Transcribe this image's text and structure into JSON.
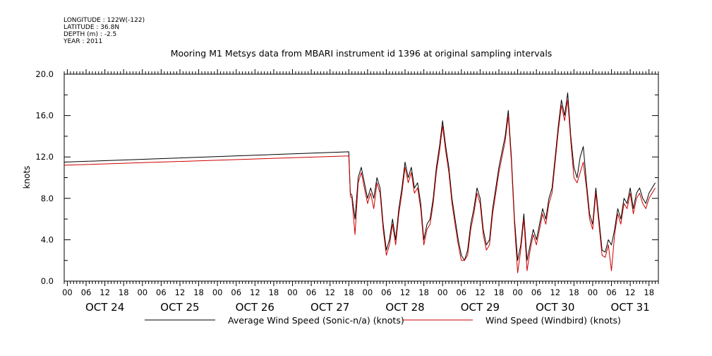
{
  "meta": {
    "longitude": "LONGITUDE : 122W(-122)",
    "latitude": "LATITUDE : 36.8N",
    "depth": "DEPTH (m) : -2.5",
    "year": "YEAR : 2011"
  },
  "chart_data": {
    "type": "line",
    "title": "Mooring M1 Metsys data from MBARI instrument id 1396 at original sampling intervals",
    "ylabel": "knots",
    "xlabel": "",
    "ylim": [
      0,
      20
    ],
    "xlim_hours": [
      -1,
      189
    ],
    "y_ticks": [
      "0.0",
      "4.0",
      "8.0",
      "12.0",
      "16.0",
      "20.0"
    ],
    "x_hour_ticks": [
      "00",
      "06",
      "12",
      "18",
      "00",
      "06",
      "12",
      "18",
      "00",
      "06",
      "12",
      "18",
      "00",
      "06",
      "12",
      "18",
      "00",
      "06",
      "12",
      "18",
      "00",
      "06",
      "12",
      "18",
      "00",
      "06",
      "12",
      "18",
      "00",
      "06",
      "12",
      "18"
    ],
    "x_day_labels": [
      "OCT 24",
      "OCT 25",
      "OCT 26",
      "OCT 27",
      "OCT 28",
      "OCT 29",
      "OCT 30",
      "OCT 31"
    ],
    "grid": false,
    "legend_position": "bottom",
    "series": [
      {
        "name": "Average Wind Speed (Sonic-n/a) (knots)",
        "color": "#000000",
        "x": [
          -1,
          90,
          90.5,
          91,
          92,
          93,
          94,
          95,
          96,
          97,
          98,
          99,
          100,
          101,
          102,
          103,
          104,
          105,
          106,
          107,
          108,
          109,
          110,
          111,
          112,
          113,
          114,
          115,
          116,
          117,
          118,
          119,
          120,
          121,
          122,
          123,
          124,
          125,
          126,
          127,
          128,
          129,
          130,
          131,
          132,
          133,
          134,
          135,
          136,
          137,
          138,
          139,
          140,
          141,
          142,
          143,
          144,
          145,
          146,
          147,
          148,
          149,
          150,
          151,
          152,
          153,
          154,
          155,
          156,
          157,
          158,
          159,
          160,
          161,
          162,
          163,
          164,
          165,
          166,
          167,
          168,
          169,
          170,
          171,
          172,
          173,
          174,
          175,
          176,
          177,
          178,
          179,
          180,
          181,
          182,
          183,
          184,
          185,
          186,
          187,
          188
        ],
        "y": [
          11.5,
          12.5,
          8.5,
          8.3,
          6.0,
          10.0,
          11.0,
          9.5,
          8.0,
          9.0,
          8.0,
          10.0,
          9.0,
          5.5,
          3.0,
          4.0,
          6.0,
          4.0,
          7.0,
          9.0,
          11.5,
          10.0,
          11.0,
          9.0,
          9.5,
          7.5,
          4.0,
          5.5,
          6.0,
          8.0,
          11.0,
          13.0,
          15.5,
          13.0,
          11.0,
          8.0,
          6.0,
          4.0,
          2.5,
          2.0,
          3.0,
          5.5,
          7.0,
          9.0,
          8.0,
          5.0,
          3.5,
          4.0,
          7.0,
          9.0,
          11.0,
          12.5,
          14.0,
          16.5,
          12.0,
          6.0,
          2.0,
          3.5,
          6.5,
          2.0,
          3.5,
          5.0,
          4.0,
          5.5,
          7.0,
          6.0,
          8.0,
          9.0,
          12.0,
          15.0,
          17.5,
          16.0,
          18.2,
          14.0,
          11.0,
          10.0,
          12.0,
          13.0,
          9.5,
          6.5,
          5.5,
          9.0,
          6.0,
          3.0,
          2.8,
          4.0,
          3.5,
          5.0,
          7.0,
          6.0,
          8.0,
          7.5,
          9.0,
          7.0,
          8.5,
          9.0,
          8.0,
          7.5,
          8.5,
          9.0,
          9.5
        ]
      },
      {
        "name": "Wind Speed (Windbird) (knots)",
        "color": "#cc0000",
        "x": [
          -1,
          90,
          90.5,
          91,
          92,
          93,
          94,
          95,
          96,
          97,
          98,
          99,
          100,
          101,
          102,
          103,
          104,
          105,
          106,
          107,
          108,
          109,
          110,
          111,
          112,
          113,
          114,
          115,
          116,
          117,
          118,
          119,
          120,
          121,
          122,
          123,
          124,
          125,
          126,
          127,
          128,
          129,
          130,
          131,
          132,
          133,
          134,
          135,
          136,
          137,
          138,
          139,
          140,
          141,
          142,
          143,
          144,
          145,
          146,
          147,
          148,
          149,
          150,
          151,
          152,
          153,
          154,
          155,
          156,
          157,
          158,
          159,
          160,
          161,
          162,
          163,
          164,
          165,
          166,
          167,
          168,
          169,
          170,
          171,
          172,
          173,
          174,
          175,
          176,
          177,
          178,
          179,
          180,
          181,
          182,
          183,
          184,
          185,
          186,
          187,
          188
        ],
        "y": [
          11.2,
          12.1,
          8.2,
          8.0,
          4.5,
          9.5,
          10.5,
          9.0,
          7.5,
          8.5,
          7.0,
          9.5,
          8.5,
          5.0,
          2.5,
          3.5,
          5.5,
          3.5,
          6.5,
          8.5,
          11.0,
          9.5,
          10.5,
          8.5,
          9.0,
          7.0,
          3.5,
          5.0,
          5.5,
          7.5,
          10.5,
          12.5,
          15.0,
          12.5,
          10.5,
          7.5,
          5.5,
          3.5,
          2.0,
          2.0,
          2.5,
          5.0,
          6.5,
          8.5,
          7.5,
          4.5,
          3.0,
          3.5,
          6.5,
          8.5,
          10.5,
          12.0,
          13.5,
          16.0,
          11.5,
          5.5,
          0.8,
          3.0,
          6.0,
          1.0,
          3.0,
          4.5,
          3.5,
          5.0,
          6.5,
          5.5,
          7.5,
          8.5,
          11.5,
          14.5,
          17.0,
          15.5,
          17.5,
          13.5,
          10.0,
          9.5,
          10.5,
          11.5,
          9.0,
          6.0,
          5.0,
          8.5,
          5.5,
          2.5,
          2.3,
          3.5,
          1.0,
          4.5,
          6.5,
          5.5,
          7.5,
          7.0,
          8.5,
          6.5,
          8.0,
          8.5,
          7.5,
          7.0,
          8.0,
          8.5,
          9.0
        ]
      }
    ]
  }
}
